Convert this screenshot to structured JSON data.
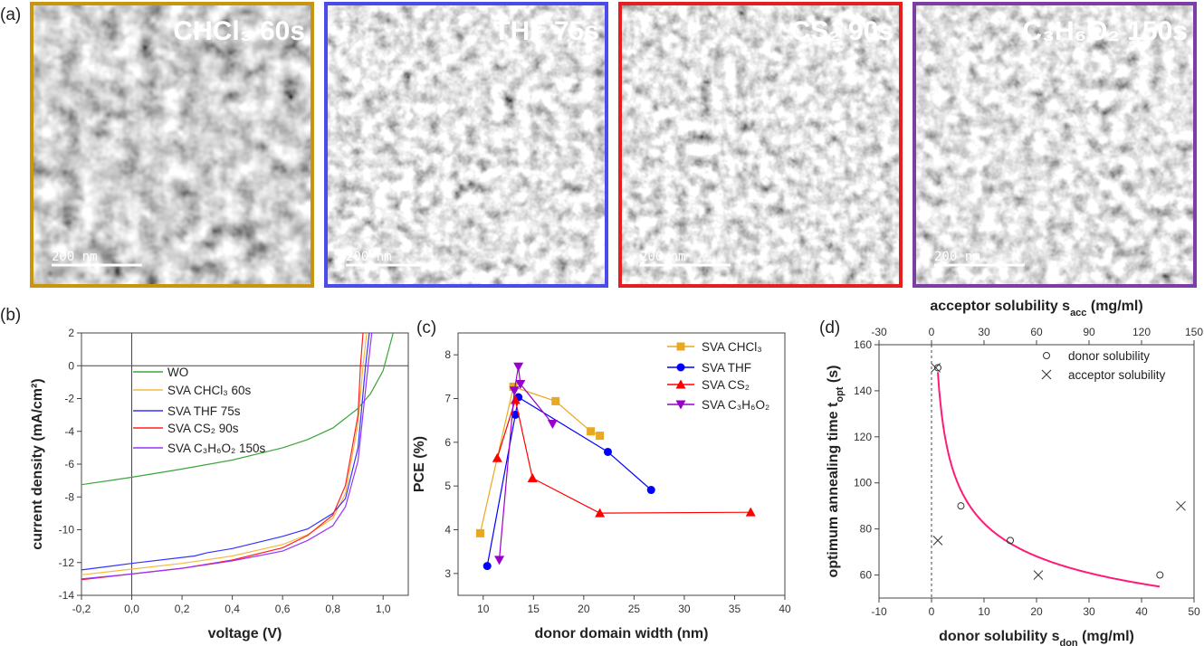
{
  "panel_a": {
    "label": "(a)",
    "images": [
      {
        "label": "CHCl₃ 60s",
        "scale_bar": "200 nm",
        "border_color": "#c8960c"
      },
      {
        "label": "THF 75s",
        "scale_bar": "200 nm",
        "border_color": "#4b4bea"
      },
      {
        "label": "CS₂ 90s",
        "scale_bar": "200 nm",
        "border_color": "#e81e1e"
      },
      {
        "label": "C₃H₆O₂ 150s",
        "scale_bar": "200 nm",
        "border_color": "#7b3fa3"
      }
    ]
  },
  "chart_data": [
    {
      "panel_label": "(b)",
      "type": "line",
      "xlabel": "voltage (V)",
      "ylabel": "current density (mA/cm²)",
      "xlim": [
        -0.2,
        1.1
      ],
      "ylim": [
        -14,
        2
      ],
      "xticks": [
        -0.2,
        0,
        0.2,
        0.4,
        0.6,
        0.8,
        1.0
      ],
      "xtick_labels": [
        "-0,2",
        "0,0",
        "0,2",
        "0,4",
        "0,6",
        "0,8",
        "1,0"
      ],
      "yticks": [
        -14,
        -12,
        -10,
        -8,
        -6,
        -4,
        -2,
        0,
        2
      ],
      "ytick_labels": [
        "-14",
        "-12",
        "-10",
        "-8",
        "-6",
        "-4",
        "-2",
        "0",
        "2"
      ],
      "legend_placement": "center-left",
      "series": [
        {
          "name": "WO",
          "color": "#3aa53a",
          "points": [
            [
              -0.2,
              -7.25
            ],
            [
              0,
              -6.8
            ],
            [
              0.2,
              -6.3
            ],
            [
              0.4,
              -5.75
            ],
            [
              0.6,
              -5.0
            ],
            [
              0.7,
              -4.5
            ],
            [
              0.8,
              -3.8
            ],
            [
              0.9,
              -2.6
            ],
            [
              0.95,
              -1.7
            ],
            [
              1.0,
              -0.3
            ],
            [
              1.04,
              2
            ]
          ]
        },
        {
          "name": "SVA CHCl₃ 60s",
          "color": "#f5b942",
          "points": [
            [
              -0.2,
              -12.75
            ],
            [
              0,
              -12.4
            ],
            [
              0.2,
              -12.05
            ],
            [
              0.4,
              -11.6
            ],
            [
              0.6,
              -10.9
            ],
            [
              0.7,
              -10.3
            ],
            [
              0.8,
              -9.3
            ],
            [
              0.85,
              -7.8
            ],
            [
              0.9,
              -3.5
            ],
            [
              0.92,
              0
            ],
            [
              0.935,
              2
            ]
          ]
        },
        {
          "name": "SVA THF 75s",
          "color": "#3333ff",
          "points": [
            [
              -0.2,
              -12.45
            ],
            [
              0,
              -12.05
            ],
            [
              0.25,
              -11.6
            ],
            [
              0.3,
              -11.4
            ],
            [
              0.4,
              -11.15
            ],
            [
              0.6,
              -10.4
            ],
            [
              0.7,
              -9.95
            ],
            [
              0.8,
              -9.0
            ],
            [
              0.85,
              -8.1
            ],
            [
              0.9,
              -5.0
            ],
            [
              0.93,
              0
            ],
            [
              0.945,
              2
            ]
          ]
        },
        {
          "name": "SVA CS₂ 90s",
          "color": "#ff2020",
          "points": [
            [
              -0.2,
              -13.05
            ],
            [
              0,
              -12.7
            ],
            [
              0.2,
              -12.35
            ],
            [
              0.4,
              -11.85
            ],
            [
              0.6,
              -11.1
            ],
            [
              0.7,
              -10.35
            ],
            [
              0.8,
              -9.1
            ],
            [
              0.85,
              -7.3
            ],
            [
              0.9,
              -3.0
            ],
            [
              0.91,
              0
            ],
            [
              0.92,
              2
            ]
          ]
        },
        {
          "name": "SVA C₃H₆O₂ 150s",
          "color": "#9933ff",
          "points": [
            [
              -0.2,
              -13.0
            ],
            [
              0,
              -12.7
            ],
            [
              0.2,
              -12.35
            ],
            [
              0.4,
              -11.9
            ],
            [
              0.6,
              -11.3
            ],
            [
              0.7,
              -10.65
            ],
            [
              0.8,
              -9.75
            ],
            [
              0.85,
              -8.6
            ],
            [
              0.9,
              -5.8
            ],
            [
              0.94,
              0
            ],
            [
              0.955,
              2
            ]
          ]
        }
      ]
    },
    {
      "panel_label": "(c)",
      "type": "line",
      "xlabel": "donor domain width (nm)",
      "ylabel": "PCE (%)",
      "xlim": [
        7.5,
        40
      ],
      "ylim": [
        2.5,
        8.5
      ],
      "xticks": [
        10,
        15,
        20,
        25,
        30,
        35,
        40
      ],
      "xtick_labels": [
        "10",
        "15",
        "20",
        "25",
        "30",
        "35",
        "40"
      ],
      "yticks": [
        3,
        4,
        5,
        6,
        7,
        8
      ],
      "ytick_labels": [
        "3",
        "4",
        "5",
        "6",
        "7",
        "8"
      ],
      "legend_placement": "top-right",
      "series": [
        {
          "name": "SVA CHCl₃",
          "color": "#e8a820",
          "marker": "square",
          "points": [
            [
              9.7,
              3.92
            ],
            [
              13.0,
              7.27
            ],
            [
              17.2,
              6.94
            ],
            [
              20.7,
              6.25
            ],
            [
              21.6,
              6.15
            ]
          ]
        },
        {
          "name": "SVA THF",
          "color": "#0000ff",
          "marker": "circle",
          "points": [
            [
              10.4,
              3.17
            ],
            [
              13.2,
              6.63
            ],
            [
              13.5,
              7.03
            ],
            [
              22.4,
              5.78
            ],
            [
              26.7,
              4.91
            ]
          ]
        },
        {
          "name": "SVA CS₂",
          "color": "#ff0000",
          "marker": "triangle-up",
          "points": [
            [
              11.4,
              5.64
            ],
            [
              13.2,
              6.97
            ],
            [
              14.9,
              5.18
            ],
            [
              21.6,
              4.38
            ],
            [
              36.6,
              4.4
            ]
          ]
        },
        {
          "name": "SVA C₃H₆O₂",
          "color": "#9900cc",
          "marker": "triangle-down",
          "points": [
            [
              11.6,
              3.31
            ],
            [
              13.1,
              7.18
            ],
            [
              13.5,
              7.73
            ],
            [
              13.7,
              7.33
            ],
            [
              16.9,
              6.42
            ]
          ]
        }
      ]
    },
    {
      "panel_label": "(d)",
      "type": "scatter",
      "xlabel": "donor solubility s",
      "xlabel_sub": "don",
      "xlabel_tail": " (mg/ml)",
      "x2label": "acceptor solubility s",
      "x2label_sub": "acc",
      "x2label_tail": " (mg/ml)",
      "ylabel": "optimum annealing time t",
      "ylabel_sub": "opt",
      "ylabel_tail": " (s)",
      "xlim": [
        -10,
        50
      ],
      "x2lim": [
        -30,
        150
      ],
      "ylim": [
        50,
        160
      ],
      "xticks": [
        -10,
        0,
        10,
        20,
        30,
        40,
        50
      ],
      "xtick_labels": [
        "-10",
        "0",
        "10",
        "20",
        "30",
        "40",
        "50"
      ],
      "x2ticks": [
        -30,
        0,
        30,
        60,
        90,
        120,
        150
      ],
      "x2tick_labels": [
        "-30",
        "0",
        "30",
        "60",
        "90",
        "120",
        "150"
      ],
      "yticks": [
        60,
        80,
        100,
        120,
        140,
        160
      ],
      "ytick_labels": [
        "60",
        "80",
        "100",
        "120",
        "140",
        "160"
      ],
      "legend_placement": "top-right",
      "series": [
        {
          "name": "donor solubility",
          "axis": "bottom",
          "color": "#333333",
          "marker": "open-circle",
          "points": [
            [
              1.2,
              150
            ],
            [
              5.6,
              90
            ],
            [
              15,
              75
            ],
            [
              43.5,
              60
            ]
          ]
        },
        {
          "name": "acceptor solubility",
          "axis": "top",
          "color": "#333333",
          "marker": "cross",
          "points": [
            [
              2.4,
              150
            ],
            [
              3.6,
              75
            ],
            [
              61,
              60
            ],
            [
              142.5,
              90
            ]
          ]
        }
      ],
      "fit": {
        "color": "#ff1a75",
        "x_range": [
          1.2,
          43.5
        ],
        "model": "t = 155.7 · s^-0.276"
      }
    }
  ]
}
